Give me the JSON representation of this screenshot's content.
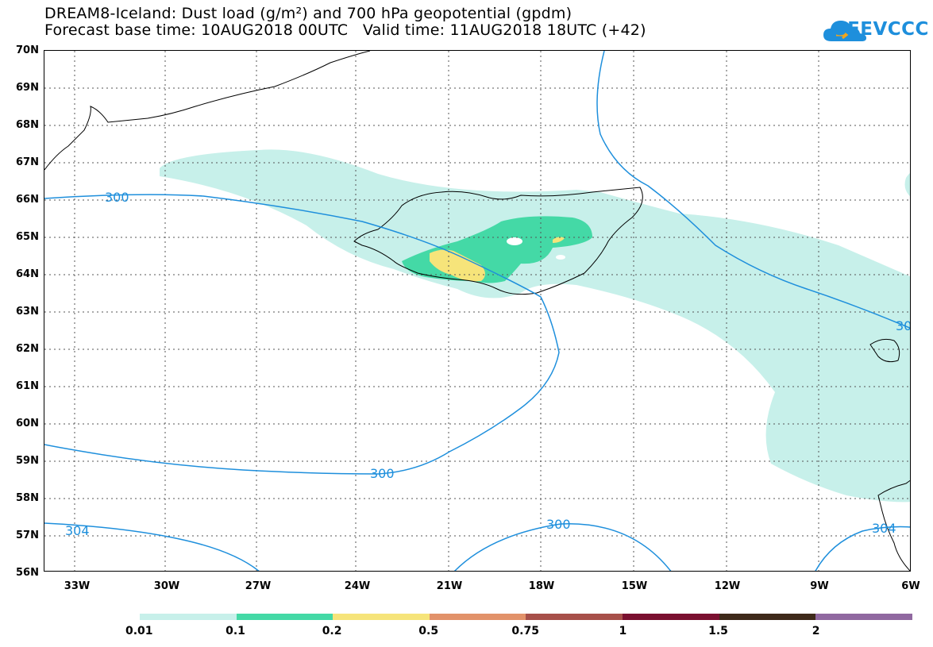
{
  "header": {
    "title_line1": "DREAM8-Iceland: Dust load (g/m²) and 700 hPa geopotential (gpdm)",
    "title_line2": "Forecast base time: 10AUG2018 00UTC   Valid time: 11AUG2018 18UTC (+42)"
  },
  "logo": {
    "text": "SEEVCCC",
    "icon": "cloud-icon",
    "color": "#1e8fdc"
  },
  "map": {
    "lat_labels": [
      "70N",
      "69N",
      "68N",
      "67N",
      "66N",
      "65N",
      "64N",
      "63N",
      "62N",
      "61N",
      "60N",
      "59N",
      "58N",
      "57N",
      "56N"
    ],
    "lon_labels": [
      "33W",
      "30W",
      "27W",
      "24W",
      "21W",
      "18W",
      "15W",
      "12W",
      "9W",
      "6W"
    ],
    "contour_labels": [
      "300",
      "300",
      "300",
      "304",
      "30",
      "304"
    ],
    "contour_color": "#1e8fdc"
  },
  "legend": {
    "labels": [
      "0.01",
      "0.1",
      "0.2",
      "0.5",
      "0.75",
      "1",
      "1.5",
      "2"
    ],
    "colors": [
      "#c7f0ea",
      "#44d9a6",
      "#f6e47a",
      "#e2926a",
      "#a7504a",
      "#7a1030",
      "#3e2a1a",
      "#9068a0"
    ]
  }
}
